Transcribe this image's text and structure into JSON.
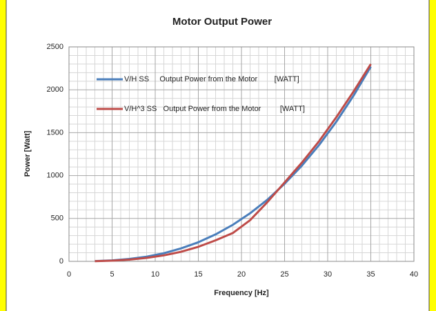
{
  "chart_data": {
    "type": "line",
    "title": "Motor Output Power",
    "x_label": "Frequency [Hz]",
    "y_label": "Power [Watt]",
    "x": [
      3,
      5,
      7,
      9,
      11,
      13,
      15,
      17,
      19,
      21,
      23,
      25,
      27,
      29,
      31,
      33,
      35
    ],
    "series": [
      {
        "name": "V/H SS     Output Power from the Motor        [WATT]",
        "color": "#4a7ebb",
        "values": [
          3,
          11,
          28,
          55,
          95,
          151,
          223,
          314,
          426,
          560,
          718,
          904,
          1115,
          1356,
          1628,
          1932,
          2270
        ]
      },
      {
        "name": "V/H^3 SS   Output Power from the Motor         [WATT]",
        "color": "#be4b48",
        "values": [
          2,
          8,
          20,
          40,
          70,
          112,
          170,
          245,
          330,
          480,
          690,
          920,
          1150,
          1400,
          1680,
          1980,
          2300
        ]
      }
    ],
    "xlim": [
      0,
      40
    ],
    "xticks": [
      0,
      5,
      10,
      15,
      20,
      25,
      30,
      35,
      40
    ],
    "ylim": [
      0,
      2500
    ],
    "yticks": [
      0,
      500,
      1000,
      1500,
      2000,
      2500
    ],
    "grid": true,
    "minor_grid": true,
    "legend": "upper left"
  }
}
